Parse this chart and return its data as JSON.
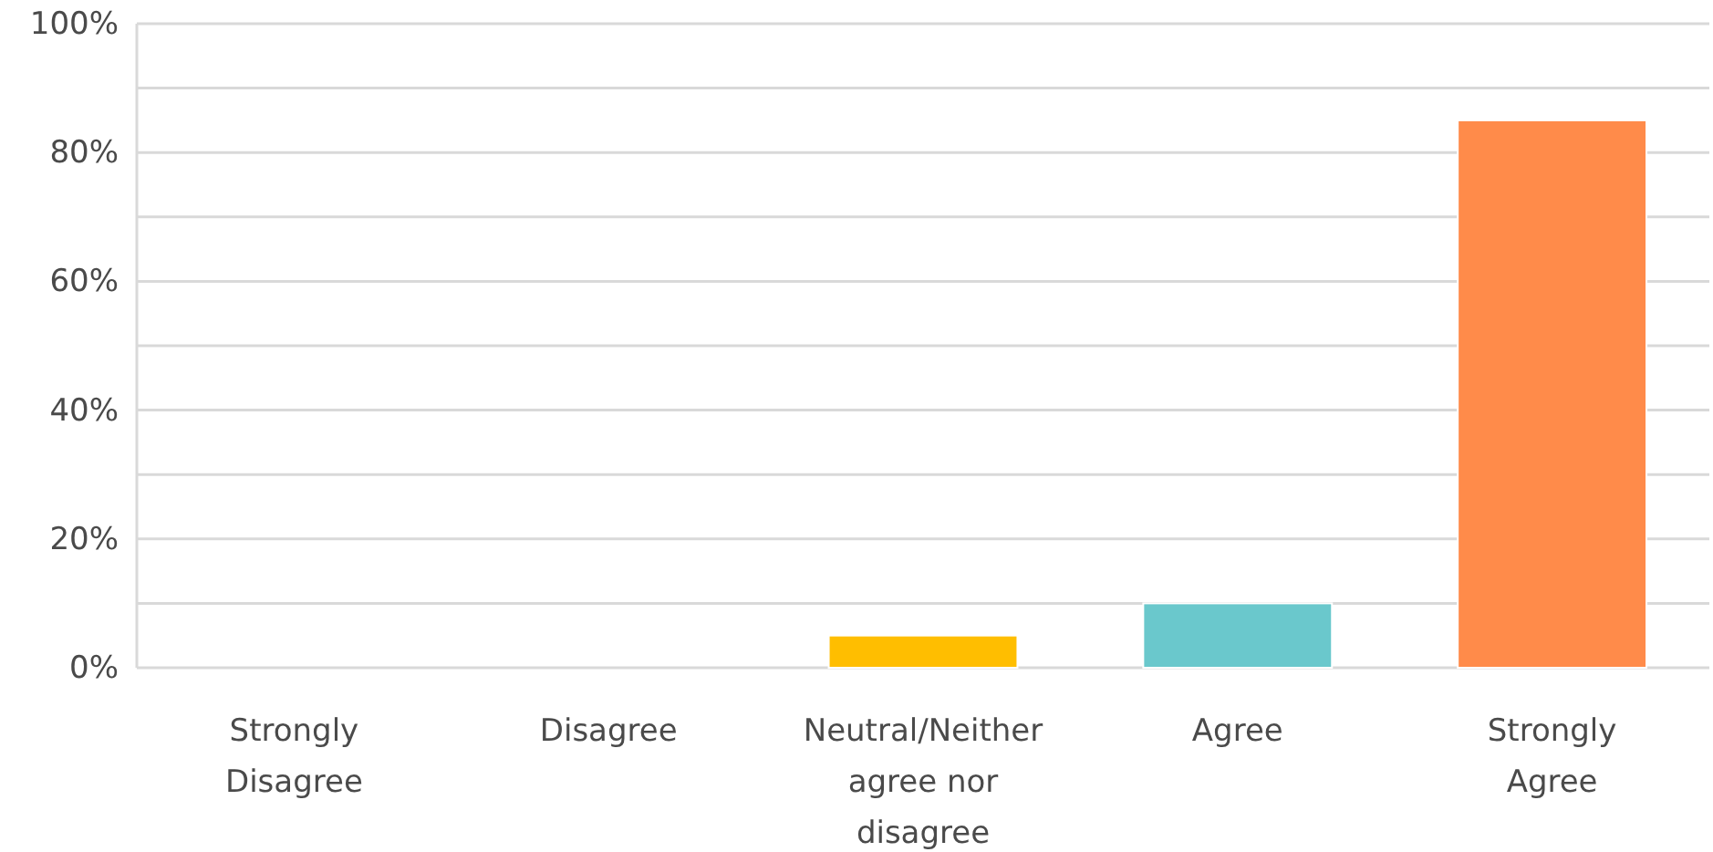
{
  "chart_data": {
    "type": "bar",
    "categories": [
      "Strongly Disagree",
      "Disagree",
      "Neutral/Neither agree nor disagree",
      "Agree",
      "Strongly Agree"
    ],
    "values": [
      0,
      0,
      5,
      10,
      85
    ],
    "colors": [
      "#6ac8cc",
      "#6ac8cc",
      "#ffbe00",
      "#6ac8cc",
      "#ff8b4a"
    ],
    "ylim": [
      0,
      100
    ],
    "yticks": [
      {
        "value": 0,
        "label": "0%"
      },
      {
        "value": 10,
        "label": null
      },
      {
        "value": 20,
        "label": "20%"
      },
      {
        "value": 30,
        "label": null
      },
      {
        "value": 40,
        "label": "40%"
      },
      {
        "value": 50,
        "label": null
      },
      {
        "value": 60,
        "label": "60%"
      },
      {
        "value": 70,
        "label": null
      },
      {
        "value": 80,
        "label": "80%"
      },
      {
        "value": 90,
        "label": null
      },
      {
        "value": 100,
        "label": "100%"
      }
    ],
    "grid": "y"
  }
}
